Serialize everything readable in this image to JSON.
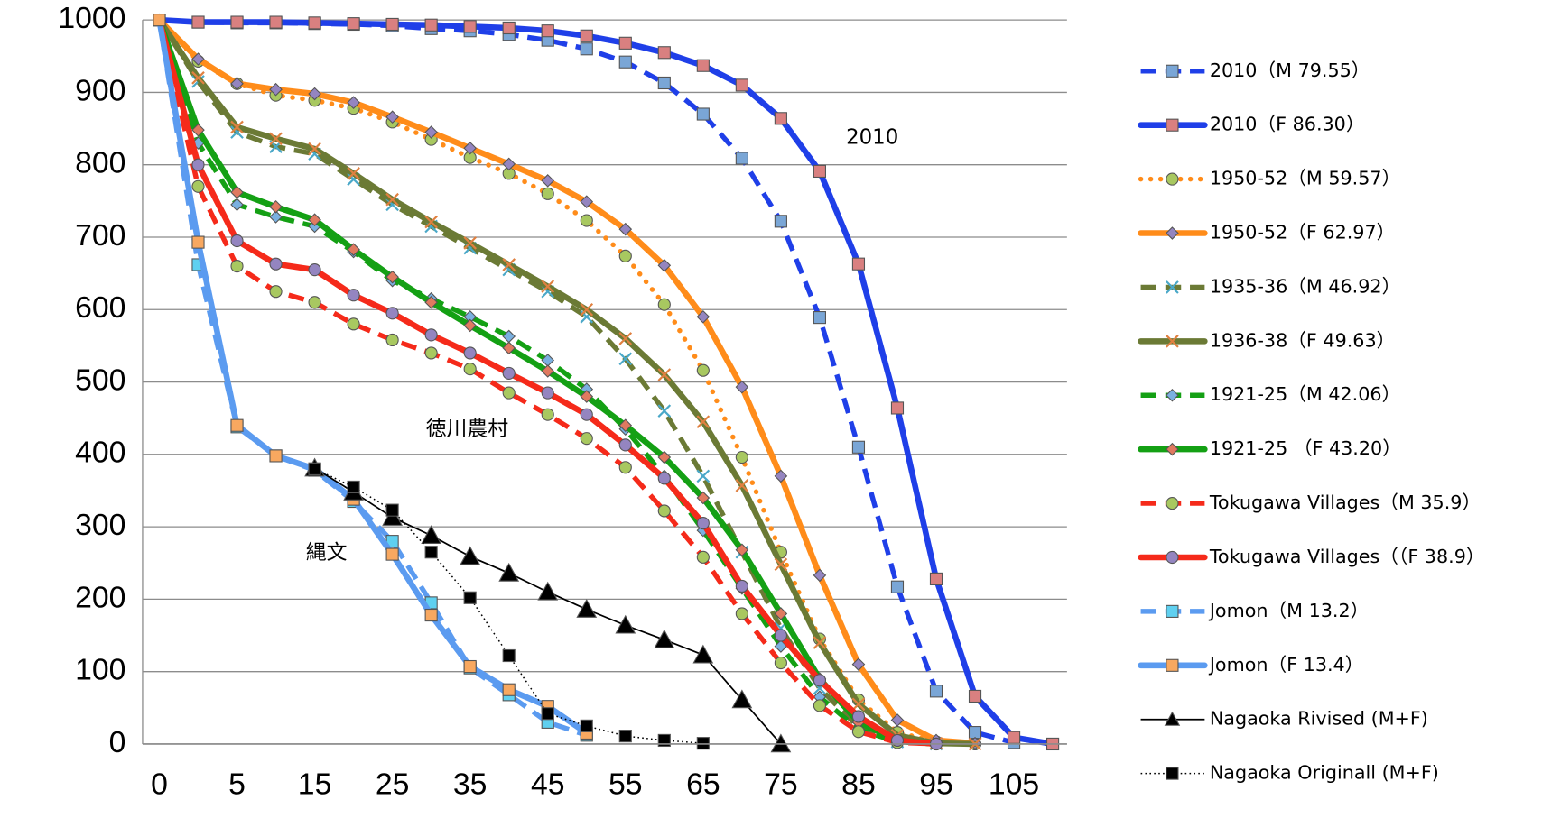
{
  "chart_data": {
    "type": "line",
    "categories": [
      0,
      null,
      5,
      null,
      15,
      null,
      25,
      null,
      35,
      null,
      45,
      null,
      55,
      null,
      65,
      null,
      75,
      null,
      85,
      null,
      95,
      null,
      105,
      null
    ],
    "ylim": [
      0,
      1000
    ],
    "yticks": [
      0,
      100,
      200,
      300,
      400,
      500,
      600,
      700,
      800,
      900,
      1000
    ],
    "grid": true,
    "annotations": [
      "2010",
      "徳川農村",
      "縄文"
    ],
    "legend": "right",
    "series": [
      {
        "name": "2010（M 79.55）",
        "color": "#1f3fe8",
        "dash": "dash",
        "marker": "square",
        "marker_color": "#7aa6d6",
        "values": [
          1000,
          997,
          996,
          996,
          995,
          994,
          992,
          988,
          985,
          980,
          972,
          960,
          942,
          913,
          870,
          809,
          722,
          589,
          410,
          217,
          73,
          16,
          2,
          null
        ]
      },
      {
        "name": "2010（F 86.30）",
        "color": "#1f3fe8",
        "dash": "solid",
        "marker": "square",
        "marker_color": "#d98080",
        "values": [
          1000,
          997,
          997,
          997,
          996,
          995,
          994,
          993,
          991,
          989,
          985,
          978,
          968,
          955,
          937,
          910,
          864,
          791,
          663,
          464,
          228,
          66,
          9,
          0
        ]
      },
      {
        "name": "1950-52（M 59.57）",
        "color": "#ff8c1a",
        "dash": "dot",
        "marker": "circle",
        "marker_color": "#a8c860",
        "values": [
          1000,
          943,
          912,
          896,
          889,
          878,
          859,
          835,
          810,
          788,
          760,
          723,
          674,
          607,
          516,
          396,
          265,
          145,
          61,
          16,
          3,
          0,
          null,
          null
        ]
      },
      {
        "name": "1950-52（F 62.97）",
        "color": "#ff8c1a",
        "dash": "solid",
        "marker": "diamond",
        "marker_color": "#9485c0",
        "values": [
          1000,
          946,
          912,
          904,
          898,
          886,
          866,
          845,
          823,
          801,
          778,
          749,
          711,
          661,
          590,
          493,
          370,
          233,
          110,
          33,
          5,
          1,
          null,
          null
        ]
      },
      {
        "name": "1935-36（M 46.92）",
        "color": "#6b7a35",
        "dash": "dash",
        "marker": "x",
        "marker_color": "#4aa8c8",
        "values": [
          1000,
          915,
          845,
          825,
          815,
          780,
          745,
          715,
          685,
          655,
          625,
          590,
          532,
          460,
          370,
          265,
          160,
          77,
          23,
          3,
          0,
          null,
          null,
          null
        ]
      },
      {
        "name": "1936-38（F 49.63）",
        "color": "#6b7a35",
        "dash": "solid",
        "marker": "x",
        "marker_color": "#e08040",
        "values": [
          1000,
          920,
          852,
          836,
          822,
          788,
          752,
          721,
          692,
          662,
          632,
          600,
          560,
          510,
          445,
          357,
          248,
          140,
          55,
          12,
          1,
          0,
          null,
          null
        ]
      },
      {
        "name": "1921-25（M 42.06）",
        "color": "#14a014",
        "dash": "dash",
        "marker": "diamond",
        "marker_color": "#7ab0e0",
        "values": [
          1000,
          830,
          745,
          728,
          715,
          680,
          640,
          615,
          590,
          563,
          530,
          490,
          435,
          370,
          295,
          215,
          135,
          65,
          20,
          3,
          0,
          null,
          null,
          null
        ]
      },
      {
        "name": "1921-25 （F 43.20）",
        "color": "#14a014",
        "dash": "solid",
        "marker": "diamond",
        "marker_color": "#e07a60",
        "values": [
          1000,
          848,
          762,
          742,
          724,
          683,
          645,
          610,
          578,
          547,
          515,
          480,
          440,
          396,
          340,
          268,
          180,
          90,
          30,
          5,
          0,
          null,
          null,
          null
        ]
      },
      {
        "name": "Tokugawa Villages（M 35.9）",
        "color": "#f52a1a",
        "dash": "dash",
        "marker": "circle",
        "marker_color": "#a8c860",
        "values": [
          1000,
          770,
          660,
          625,
          610,
          580,
          558,
          540,
          518,
          485,
          455,
          422,
          382,
          322,
          258,
          180,
          112,
          53,
          17,
          2,
          0,
          null,
          null,
          null
        ]
      },
      {
        "name": "Tokugawa Villages（（F 38.9）",
        "color": "#f52a1a",
        "dash": "solid",
        "marker": "circle",
        "marker_color": "#9485c0",
        "values": [
          1000,
          800,
          695,
          663,
          655,
          620,
          595,
          565,
          540,
          512,
          485,
          455,
          413,
          367,
          305,
          218,
          150,
          88,
          38,
          5,
          0,
          null,
          null,
          null
        ]
      },
      {
        "name": "Jomon（M 13.2）",
        "color": "#5b9bf0",
        "dash": "dash",
        "marker": "square",
        "marker_color": "#5fd0f0",
        "values": [
          1000,
          662,
          438,
          398,
          378,
          335,
          280,
          195,
          105,
          68,
          30,
          12,
          null,
          null,
          null,
          null,
          null,
          null,
          null,
          null,
          null,
          null,
          null,
          null
        ]
      },
      {
        "name": "Jomon（F 13.4）",
        "color": "#5b9bf0",
        "dash": "solid",
        "marker": "square",
        "marker_color": "#f8a860",
        "values": [
          1000,
          693,
          440,
          398,
          380,
          338,
          262,
          178,
          107,
          75,
          52,
          15,
          null,
          null,
          null,
          null,
          null,
          null,
          null,
          null,
          null,
          null,
          null,
          null
        ]
      },
      {
        "name": "Nagaoka Rivised (M+F)",
        "color": "#000000",
        "dash": "thin",
        "marker": "triangle",
        "marker_color": "#000000",
        "values": [
          null,
          null,
          null,
          null,
          381,
          348,
          313,
          288,
          259,
          236,
          210,
          186,
          164,
          144,
          123,
          61,
          0,
          null,
          null,
          null,
          null,
          null,
          null,
          null
        ]
      },
      {
        "name": "Nagaoka Originall (M+F)",
        "color": "#000000",
        "dash": "thindot",
        "marker": "square",
        "marker_color": "#000000",
        "values": [
          null,
          null,
          null,
          null,
          380,
          355,
          323,
          265,
          202,
          122,
          42,
          25,
          11,
          5,
          1,
          null,
          null,
          null,
          null,
          null,
          null,
          null,
          null,
          null
        ]
      }
    ]
  }
}
